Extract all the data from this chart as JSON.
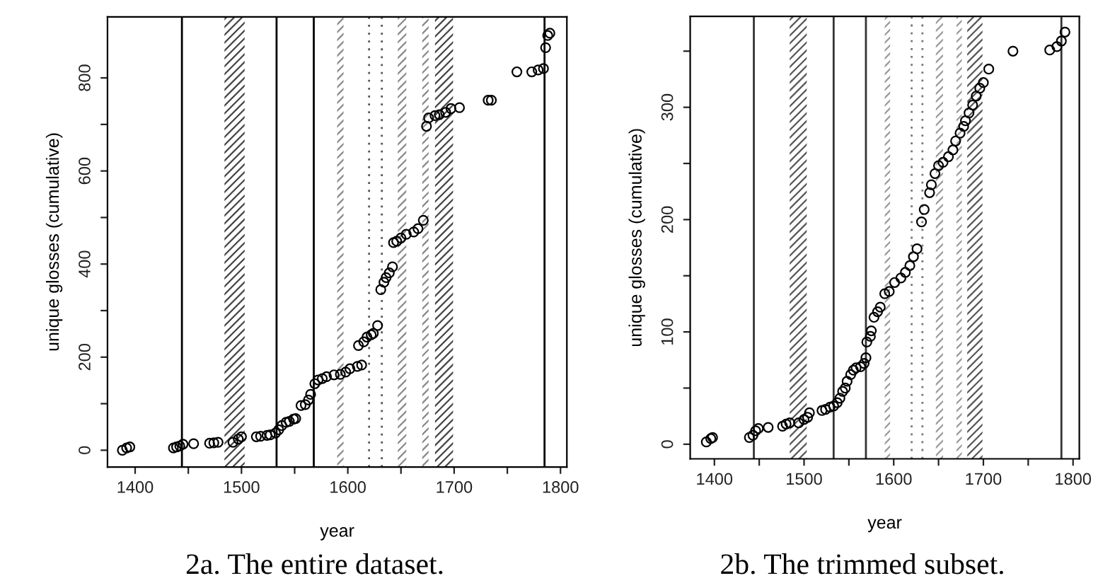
{
  "chart_data": [
    {
      "type": "scatter",
      "title": "2a. The entire dataset.",
      "xlabel": "year",
      "ylabel": "unique glosses (cumulative)",
      "marker": "circle",
      "grid": false,
      "legend": false,
      "xlim": [
        1374,
        1806
      ],
      "ylim": [
        -36,
        931
      ],
      "xticks": [
        1400,
        {
          "value": 1450,
          "label": null
        },
        1500,
        {
          "value": 1550,
          "label": null
        },
        1600,
        {
          "value": 1650,
          "label": null
        },
        1700,
        {
          "value": 1750,
          "label": null
        },
        1800
      ],
      "yticks": [
        0,
        {
          "value": 100,
          "label": null
        },
        200,
        {
          "value": 300,
          "label": null
        },
        400,
        {
          "value": 500,
          "label": null
        },
        600,
        {
          "value": 700,
          "label": null
        },
        800
      ],
      "series": [
        {
          "color": "#000000",
          "x": [
            1388,
            1392,
            1395,
            1436,
            1439,
            1442,
            1445,
            1455,
            1470,
            1474,
            1478,
            1492,
            1497,
            1500,
            1514,
            1518,
            1524,
            1527,
            1532,
            1535,
            1538,
            1542,
            1545,
            1549,
            1551,
            1556,
            1560,
            1563,
            1565,
            1569,
            1572,
            1576,
            1580,
            1587,
            1593,
            1598,
            1602,
            1609,
            1613,
            1610,
            1615,
            1618,
            1622,
            1624,
            1628,
            1631,
            1634,
            1636,
            1639,
            1642,
            1643,
            1646,
            1650,
            1655,
            1662,
            1666,
            1671,
            1674,
            1676,
            1682,
            1686,
            1692,
            1697,
            1705,
            1732,
            1735,
            1759,
            1773,
            1779,
            1784,
            1786,
            1788,
            1790
          ],
          "values": [
            0,
            5,
            7,
            5,
            7,
            9,
            13,
            14,
            15,
            16,
            17,
            17,
            24,
            29,
            29,
            30,
            32,
            33,
            37,
            44,
            53,
            60,
            62,
            67,
            68,
            96,
            98,
            108,
            120,
            143,
            151,
            154,
            158,
            162,
            163,
            168,
            175,
            180,
            183,
            225,
            233,
            243,
            248,
            251,
            268,
            345,
            361,
            371,
            381,
            394,
            446,
            449,
            456,
            464,
            469,
            476,
            494,
            696,
            714,
            719,
            721,
            726,
            734,
            736,
            752,
            752,
            813,
            813,
            817,
            820,
            865,
            891,
            896
          ]
        }
      ],
      "ref_lines": [
        {
          "axis": "x",
          "value": 1444,
          "color": "#000000",
          "line_style": "solid"
        },
        {
          "axis": "x",
          "value": 1533,
          "color": "#000000",
          "line_style": "solid"
        },
        {
          "axis": "x",
          "value": 1568,
          "color": "#000000",
          "line_style": "solid"
        },
        {
          "axis": "x",
          "value": 1785,
          "color": "#000000",
          "line_style": "solid"
        },
        {
          "axis": "x",
          "value": 1620,
          "color": "#555555",
          "line_style": "dotted"
        },
        {
          "axis": "x",
          "value": 1632,
          "color": "#555555",
          "line_style": "dotted"
        }
      ],
      "bands": [
        {
          "axis": "x",
          "from": 1484,
          "to": 1503,
          "color": "#444444"
        },
        {
          "axis": "x",
          "from": 1590,
          "to": 1596,
          "color": "#888888"
        },
        {
          "axis": "x",
          "from": 1647,
          "to": 1655,
          "color": "#888888"
        },
        {
          "axis": "x",
          "from": 1670,
          "to": 1676,
          "color": "#888888"
        },
        {
          "axis": "x",
          "from": 1682,
          "to": 1699,
          "color": "#444444"
        }
      ]
    },
    {
      "type": "scatter",
      "title": "2b. The trimmed subset.",
      "xlabel": "year",
      "ylabel": "unique glosses (cumulative)",
      "marker": "circle",
      "grid": false,
      "legend": false,
      "xlim": [
        1373,
        1807
      ],
      "ylim": [
        -13,
        381
      ],
      "xticks": [
        1400,
        {
          "value": 1450,
          "label": null
        },
        1500,
        {
          "value": 1550,
          "label": null
        },
        1600,
        {
          "value": 1650,
          "label": null
        },
        1700,
        {
          "value": 1750,
          "label": null
        },
        1800
      ],
      "yticks": [
        0,
        {
          "value": 50,
          "label": null
        },
        100,
        {
          "value": 150,
          "label": null
        },
        200,
        {
          "value": 250,
          "label": null
        },
        300,
        {
          "value": 350,
          "label": null
        }
      ],
      "series": [
        {
          "color": "#000000",
          "x": [
            1391,
            1396,
            1398,
            1439,
            1443,
            1446,
            1449,
            1460,
            1476,
            1480,
            1484,
            1494,
            1500,
            1504,
            1506,
            1520,
            1524,
            1529,
            1533,
            1537,
            1540,
            1543,
            1546,
            1548,
            1552,
            1555,
            1558,
            1563,
            1567,
            1569,
            1570,
            1574,
            1575,
            1578,
            1582,
            1585,
            1590,
            1595,
            1601,
            1608,
            1613,
            1618,
            1622,
            1626,
            1631,
            1634,
            1640,
            1642,
            1646,
            1650,
            1655,
            1661,
            1666,
            1669,
            1674,
            1678,
            1680,
            1684,
            1688,
            1692,
            1696,
            1700,
            1706,
            1733,
            1774,
            1782,
            1787,
            1791
          ],
          "values": [
            2,
            5,
            6,
            6,
            8,
            12,
            14,
            15,
            16,
            18,
            19,
            19,
            22,
            24,
            28,
            30,
            31,
            33,
            34,
            37,
            41,
            47,
            50,
            56,
            62,
            66,
            68,
            69,
            72,
            77,
            91,
            96,
            101,
            113,
            118,
            122,
            134,
            136,
            144,
            148,
            153,
            159,
            167,
            174,
            198,
            209,
            224,
            231,
            241,
            248,
            251,
            256,
            262,
            270,
            277,
            283,
            288,
            295,
            302,
            310,
            317,
            322,
            334,
            350,
            351,
            354,
            359,
            367
          ]
        }
      ],
      "ref_lines": [
        {
          "axis": "x",
          "value": 1444,
          "color": "#333333",
          "line_style": "solid"
        },
        {
          "axis": "x",
          "value": 1533,
          "color": "#333333",
          "line_style": "solid"
        },
        {
          "axis": "x",
          "value": 1569,
          "color": "#333333",
          "line_style": "solid"
        },
        {
          "axis": "x",
          "value": 1787,
          "color": "#333333",
          "line_style": "solid"
        },
        {
          "axis": "x",
          "value": 1620,
          "color": "#777777",
          "line_style": "dotted"
        },
        {
          "axis": "x",
          "value": 1632,
          "color": "#777777",
          "line_style": "dotted"
        }
      ],
      "bands": [
        {
          "axis": "x",
          "from": 1484,
          "to": 1503,
          "color": "#555555"
        },
        {
          "axis": "x",
          "from": 1590,
          "to": 1596,
          "color": "#999999"
        },
        {
          "axis": "x",
          "from": 1647,
          "to": 1655,
          "color": "#999999"
        },
        {
          "axis": "x",
          "from": 1670,
          "to": 1676,
          "color": "#999999"
        },
        {
          "axis": "x",
          "from": 1682,
          "to": 1699,
          "color": "#555555"
        }
      ]
    }
  ]
}
